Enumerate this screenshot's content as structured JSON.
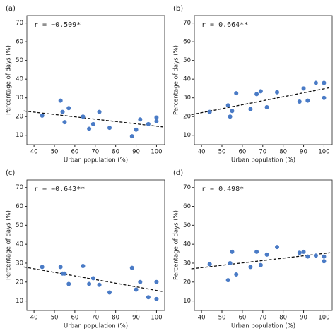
{
  "chart_data": [
    {
      "type": "scatter",
      "panel_label": "(a)",
      "annotation": "r = −0.509*",
      "xlabel": "Urban population (%)",
      "ylabel": "Percentage of days (%)",
      "color": "#4a7bc6",
      "x": [
        44,
        53,
        54,
        55,
        57,
        64,
        67,
        69,
        72,
        77,
        88,
        90,
        92,
        96,
        100,
        100
      ],
      "values": [
        20.5,
        28.5,
        22.5,
        17,
        24.5,
        20,
        13.5,
        16,
        22.5,
        14,
        9.5,
        13,
        18.5,
        16,
        19.5,
        17.5
      ],
      "trendline": {
        "x": [
          35,
          103
        ],
        "y": [
          23,
          14.5
        ]
      },
      "xlim": [
        36.5,
        104
      ],
      "ylim": [
        5,
        74
      ],
      "xticks": [
        40,
        50,
        60,
        70,
        80,
        90,
        100
      ],
      "yticks": [
        10,
        20,
        30,
        40,
        50,
        60,
        70
      ]
    },
    {
      "type": "scatter",
      "panel_label": "(b)",
      "annotation": "r = 0.664**",
      "xlabel": "Urban population (%)",
      "ylabel": "Percentage of days (%)",
      "color": "#4a7bc6",
      "x": [
        44,
        53,
        54,
        55,
        57,
        64,
        67,
        69,
        72,
        77,
        88,
        90,
        92,
        96,
        100,
        100
      ],
      "values": [
        22.5,
        26,
        20,
        23,
        32.5,
        24,
        32,
        33.5,
        25,
        33,
        28,
        35,
        28.5,
        38,
        38,
        30
      ],
      "trendline": {
        "x": [
          35,
          103
        ],
        "y": [
          21,
          35.5
        ]
      },
      "xlim": [
        36.5,
        104
      ],
      "ylim": [
        5,
        74
      ],
      "xticks": [
        40,
        50,
        60,
        70,
        80,
        90,
        100
      ],
      "yticks": [
        10,
        20,
        30,
        40,
        50,
        60,
        70
      ]
    },
    {
      "type": "scatter",
      "panel_label": "(c)",
      "annotation": "r = −0.643**",
      "xlabel": "Urban population (%)",
      "ylabel": "Percentage of days (%)",
      "color": "#4a7bc6",
      "x": [
        44,
        53,
        54,
        55,
        57,
        64,
        67,
        69,
        72,
        77,
        88,
        90,
        92,
        96,
        100,
        100
      ],
      "values": [
        28,
        28,
        24.5,
        24.5,
        19,
        28.5,
        19,
        22,
        18.5,
        14.5,
        27.5,
        16,
        20,
        12,
        20,
        11
      ],
      "trendline": {
        "x": [
          35,
          103
        ],
        "y": [
          28,
          15
        ]
      },
      "xlim": [
        36.5,
        104
      ],
      "ylim": [
        5,
        74
      ],
      "xticks": [
        40,
        50,
        60,
        70,
        80,
        90,
        100
      ],
      "yticks": [
        10,
        20,
        30,
        40,
        50,
        60,
        70
      ]
    },
    {
      "type": "scatter",
      "panel_label": "(d)",
      "annotation": "r = 0.498*",
      "xlabel": "Urban population (%)",
      "ylabel": "Percentage of days (%)",
      "color": "#4a7bc6",
      "x": [
        44,
        53,
        54,
        55,
        57,
        64,
        67,
        69,
        72,
        77,
        88,
        90,
        92,
        96,
        100,
        100
      ],
      "values": [
        29.5,
        21,
        30,
        36,
        24,
        28,
        36,
        29,
        34.5,
        38.5,
        35.5,
        36,
        33.5,
        34,
        33.5,
        31
      ],
      "trendline": {
        "x": [
          35,
          103
        ],
        "y": [
          27,
          35.5
        ]
      },
      "xlim": [
        36.5,
        104
      ],
      "ylim": [
        5,
        74
      ],
      "xticks": [
        40,
        50,
        60,
        70,
        80,
        90,
        100
      ],
      "yticks": [
        10,
        20,
        30,
        40,
        50,
        60,
        70
      ]
    }
  ]
}
